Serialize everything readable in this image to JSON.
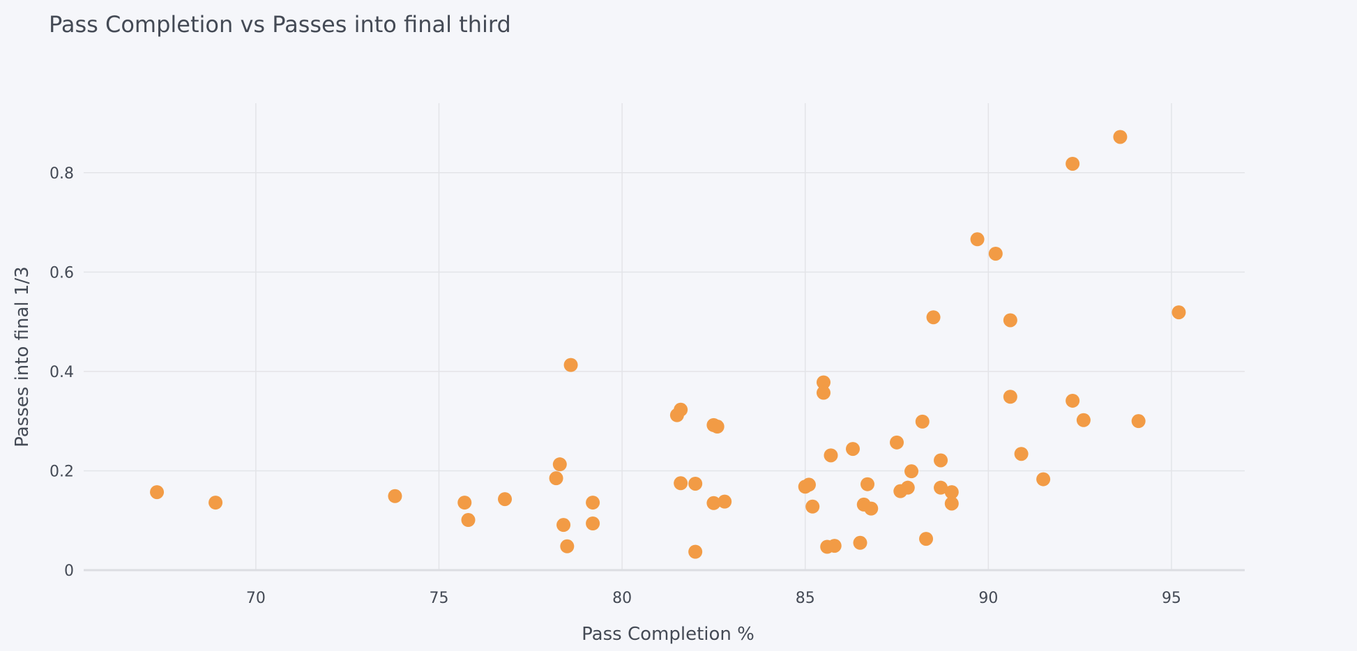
{
  "colors": {
    "background": "#f5f6fa",
    "marker": "#f29b45",
    "grid": "#e3e4e8"
  },
  "chart_data": {
    "type": "scatter",
    "title": "Pass Completion vs Passes into final third",
    "xlabel": "Pass Completion %",
    "ylabel": "Passes into final 1/3",
    "xlim": [
      65.3,
      97.0
    ],
    "ylim": [
      0,
      0.94
    ],
    "xticks": [
      {
        "value": 70,
        "label": "70"
      },
      {
        "value": 75,
        "label": "75"
      },
      {
        "value": 80,
        "label": "80"
      },
      {
        "value": 85,
        "label": "85"
      },
      {
        "value": 90,
        "label": "90"
      },
      {
        "value": 95,
        "label": "95"
      }
    ],
    "yticks": [
      {
        "value": 0,
        "label": "0"
      },
      {
        "value": 0.2,
        "label": "0.2"
      },
      {
        "value": 0.4,
        "label": "0.4"
      },
      {
        "value": 0.6,
        "label": "0.6"
      },
      {
        "value": 0.8,
        "label": "0.8"
      }
    ],
    "grid": true,
    "legend": "none",
    "points": [
      {
        "x": 67.3,
        "y": 0.157
      },
      {
        "x": 68.9,
        "y": 0.136
      },
      {
        "x": 73.8,
        "y": 0.149
      },
      {
        "x": 75.7,
        "y": 0.136
      },
      {
        "x": 75.8,
        "y": 0.101
      },
      {
        "x": 76.8,
        "y": 0.143
      },
      {
        "x": 78.2,
        "y": 0.185
      },
      {
        "x": 78.3,
        "y": 0.213
      },
      {
        "x": 78.4,
        "y": 0.091
      },
      {
        "x": 78.5,
        "y": 0.048
      },
      {
        "x": 78.6,
        "y": 0.413
      },
      {
        "x": 79.2,
        "y": 0.136
      },
      {
        "x": 79.2,
        "y": 0.094
      },
      {
        "x": 81.5,
        "y": 0.312
      },
      {
        "x": 81.6,
        "y": 0.323
      },
      {
        "x": 81.6,
        "y": 0.175
      },
      {
        "x": 82.0,
        "y": 0.174
      },
      {
        "x": 82.0,
        "y": 0.037
      },
      {
        "x": 82.5,
        "y": 0.292
      },
      {
        "x": 82.6,
        "y": 0.289
      },
      {
        "x": 82.5,
        "y": 0.135
      },
      {
        "x": 82.8,
        "y": 0.138
      },
      {
        "x": 85.0,
        "y": 0.168
      },
      {
        "x": 85.1,
        "y": 0.172
      },
      {
        "x": 85.2,
        "y": 0.128
      },
      {
        "x": 85.5,
        "y": 0.378
      },
      {
        "x": 85.5,
        "y": 0.357
      },
      {
        "x": 85.6,
        "y": 0.047
      },
      {
        "x": 85.7,
        "y": 0.231
      },
      {
        "x": 85.8,
        "y": 0.049
      },
      {
        "x": 86.3,
        "y": 0.244
      },
      {
        "x": 86.5,
        "y": 0.055
      },
      {
        "x": 86.6,
        "y": 0.132
      },
      {
        "x": 86.7,
        "y": 0.173
      },
      {
        "x": 86.8,
        "y": 0.124
      },
      {
        "x": 87.5,
        "y": 0.257
      },
      {
        "x": 87.6,
        "y": 0.159
      },
      {
        "x": 87.8,
        "y": 0.166
      },
      {
        "x": 87.9,
        "y": 0.199
      },
      {
        "x": 88.2,
        "y": 0.299
      },
      {
        "x": 88.3,
        "y": 0.063
      },
      {
        "x": 88.5,
        "y": 0.509
      },
      {
        "x": 88.7,
        "y": 0.221
      },
      {
        "x": 88.7,
        "y": 0.166
      },
      {
        "x": 89.0,
        "y": 0.157
      },
      {
        "x": 89.0,
        "y": 0.134
      },
      {
        "x": 89.7,
        "y": 0.666
      },
      {
        "x": 90.2,
        "y": 0.637
      },
      {
        "x": 90.6,
        "y": 0.503
      },
      {
        "x": 90.6,
        "y": 0.349
      },
      {
        "x": 90.9,
        "y": 0.234
      },
      {
        "x": 91.5,
        "y": 0.183
      },
      {
        "x": 92.3,
        "y": 0.818
      },
      {
        "x": 92.3,
        "y": 0.341
      },
      {
        "x": 92.6,
        "y": 0.302
      },
      {
        "x": 93.6,
        "y": 0.872
      },
      {
        "x": 94.1,
        "y": 0.3
      },
      {
        "x": 95.2,
        "y": 0.519
      }
    ]
  }
}
